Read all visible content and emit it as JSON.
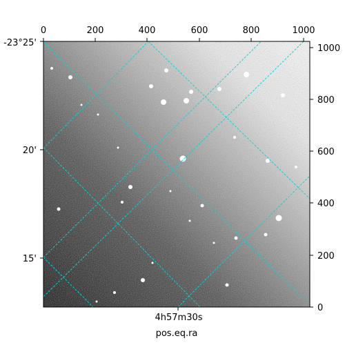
{
  "image": {
    "subject": "astronomical grayscale sky image with celestial coordinate grid overlay",
    "colormap": "grayscale (dark lower-left, bright upper-right)",
    "grid_color": "#00d7d7",
    "pixel_axes": {
      "bottom_ticks": [
        "0",
        "200",
        "400",
        "600",
        "800",
        "1000"
      ],
      "right_ticks": [
        "0",
        "200",
        "400",
        "600",
        "800",
        "1000"
      ]
    },
    "world_axes": {
      "dec_ticks": [
        "-23°25'",
        "20'",
        "15'"
      ],
      "ra_tick": "4h57m30s",
      "xlabel": "pos.eq.ra"
    }
  }
}
